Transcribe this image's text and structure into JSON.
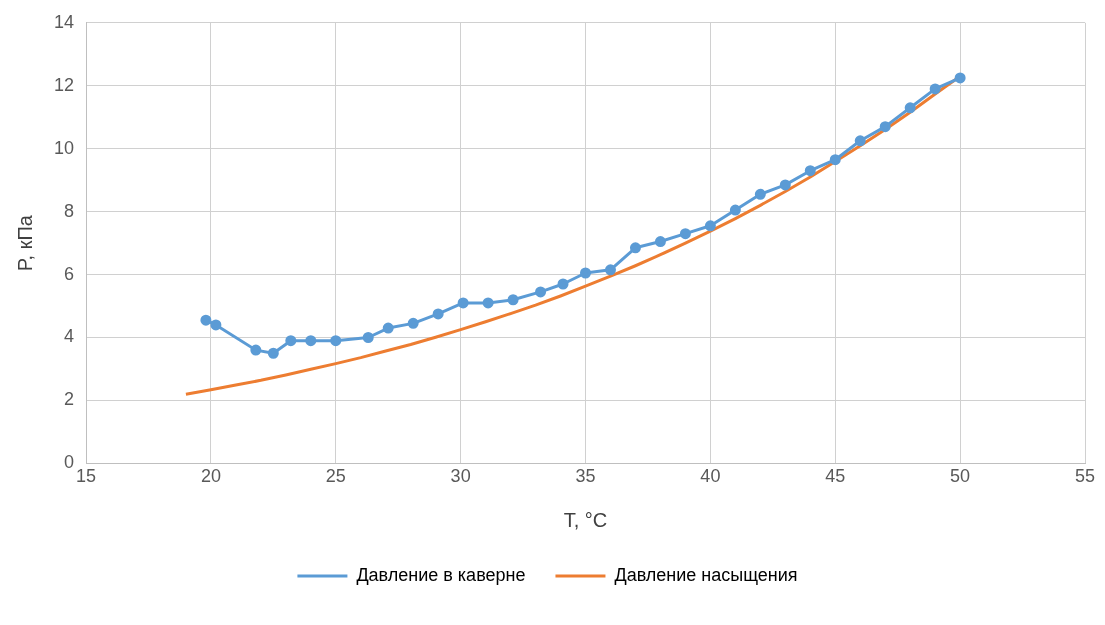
{
  "chart_data": {
    "type": "line",
    "xlabel": "T, °C",
    "ylabel": "P, кПа",
    "xlim": [
      15,
      55
    ],
    "xticks": [
      15,
      20,
      25,
      30,
      35,
      40,
      45,
      50,
      55
    ],
    "ylim": [
      0,
      14
    ],
    "yticks": [
      0,
      2,
      4,
      6,
      8,
      10,
      12,
      14
    ],
    "grid": true,
    "legend": "bottom",
    "line_style": "solid",
    "series": [
      {
        "name": "Давление в каверне",
        "color": "#5b9bd5",
        "marker": "circle",
        "x": [
          19.8,
          20.2,
          21.8,
          22.5,
          23.2,
          24,
          25,
          26.3,
          27.1,
          28.1,
          29.1,
          30.1,
          31.1,
          32.1,
          33.2,
          34.1,
          35,
          36,
          37,
          38,
          39,
          40,
          41,
          42,
          43,
          44,
          45,
          46,
          47,
          48,
          49,
          50
        ],
        "values": [
          4.55,
          4.4,
          3.6,
          3.5,
          3.9,
          3.9,
          3.9,
          4.0,
          4.3,
          4.45,
          4.75,
          5.1,
          5.1,
          5.2,
          5.45,
          5.7,
          6.05,
          6.15,
          6.85,
          7.05,
          7.3,
          7.55,
          8.05,
          8.55,
          8.85,
          9.3,
          9.65,
          10.25,
          10.7,
          11.3,
          11.9,
          12.25
        ]
      },
      {
        "name": "Давление насыщения",
        "color": "#ed7d31",
        "marker": "none",
        "x": [
          19,
          20,
          21,
          22,
          23,
          24,
          25,
          26,
          27,
          28,
          29,
          30,
          31,
          32,
          33,
          34,
          35,
          36,
          37,
          38,
          39,
          40,
          41,
          42,
          43,
          44,
          45,
          46,
          47,
          48,
          49,
          50
        ],
        "values": [
          2.2,
          2.34,
          2.49,
          2.64,
          2.81,
          2.99,
          3.17,
          3.36,
          3.57,
          3.78,
          4.01,
          4.25,
          4.5,
          4.76,
          5.03,
          5.32,
          5.63,
          5.95,
          6.28,
          6.63,
          7.0,
          7.38,
          7.78,
          8.2,
          8.64,
          9.1,
          9.59,
          10.09,
          10.61,
          11.16,
          11.74,
          12.3
        ]
      }
    ]
  }
}
